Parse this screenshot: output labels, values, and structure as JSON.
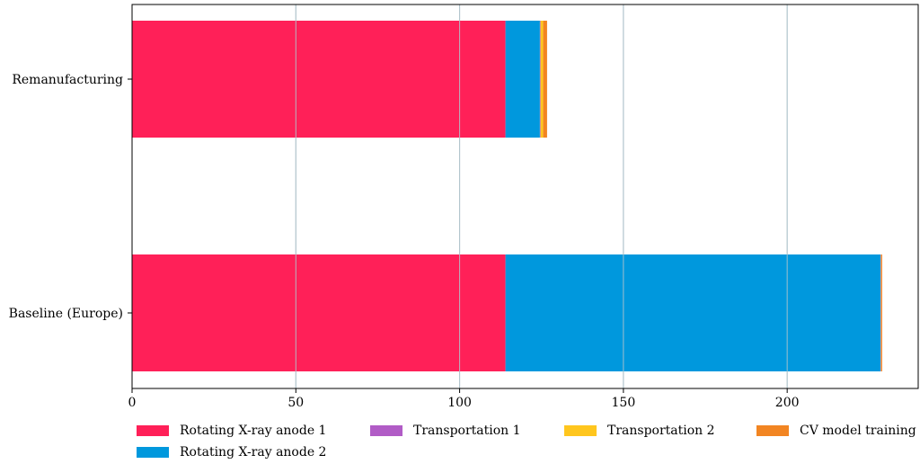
{
  "chart_data": {
    "type": "bar",
    "orientation": "horizontal",
    "stacked": true,
    "categories": [
      "Remanufacturing",
      "Baseline (Europe)"
    ],
    "series": [
      {
        "name": "Rotating X-ray anode 1",
        "color": "#ff2058",
        "values": [
          114,
          114
        ]
      },
      {
        "name": "Rotating X-ray anode 2",
        "color": "#0098dd",
        "values": [
          10.5,
          114.5
        ]
      },
      {
        "name": "Transportation 1",
        "color": "#b15cc6",
        "values": [
          0.2,
          0.1
        ]
      },
      {
        "name": "Transportation 2",
        "color": "#ffc61e",
        "values": [
          0.8,
          0.1
        ]
      },
      {
        "name": "CV model training",
        "color": "#f28522",
        "values": [
          1.2,
          0.3
        ]
      }
    ],
    "xlim": [
      0,
      240
    ],
    "xticks": [
      "0",
      "50",
      "100",
      "150",
      "200"
    ],
    "grid": true,
    "legend": "bottom",
    "gridline_color": "#b0c4cc"
  }
}
